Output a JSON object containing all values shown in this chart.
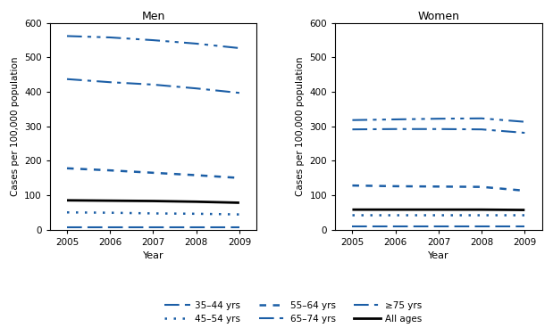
{
  "years": [
    2005,
    2006,
    2007,
    2008,
    2009
  ],
  "men": {
    "age_35_44": [
      8,
      8,
      8,
      8,
      8
    ],
    "age_45_54": [
      50,
      49,
      47,
      46,
      44
    ],
    "age_55_64": [
      178,
      172,
      165,
      158,
      150
    ],
    "age_65_74": [
      437,
      428,
      421,
      410,
      397
    ],
    "age_75plus": [
      562,
      558,
      550,
      540,
      527
    ],
    "all_ages": [
      85,
      84,
      83,
      81,
      78
    ]
  },
  "women": {
    "age_35_44": [
      10,
      10,
      10,
      10,
      10
    ],
    "age_45_54": [
      44,
      44,
      44,
      44,
      44
    ],
    "age_55_64": [
      128,
      126,
      125,
      124,
      113
    ],
    "age_65_74": [
      291,
      292,
      292,
      291,
      281
    ],
    "age_75plus": [
      318,
      320,
      322,
      323,
      313
    ],
    "all_ages": [
      58,
      58,
      58,
      58,
      57
    ]
  },
  "blue_color": "#1B5EA6",
  "black_color": "#000000",
  "gray_color": "#808080",
  "title_men": "Men",
  "title_women": "Women",
  "ylabel": "Cases per 100,000 population",
  "xlabel": "Year",
  "ylim": [
    0,
    600
  ],
  "yticks": [
    0,
    100,
    200,
    300,
    400,
    500,
    600
  ],
  "xticks": [
    2005,
    2006,
    2007,
    2008,
    2009
  ],
  "legend_labels": [
    "35–44 yrs",
    "45–54 yrs",
    "55–64 yrs",
    "65–74 yrs",
    "≥75 yrs",
    "All ages"
  ]
}
